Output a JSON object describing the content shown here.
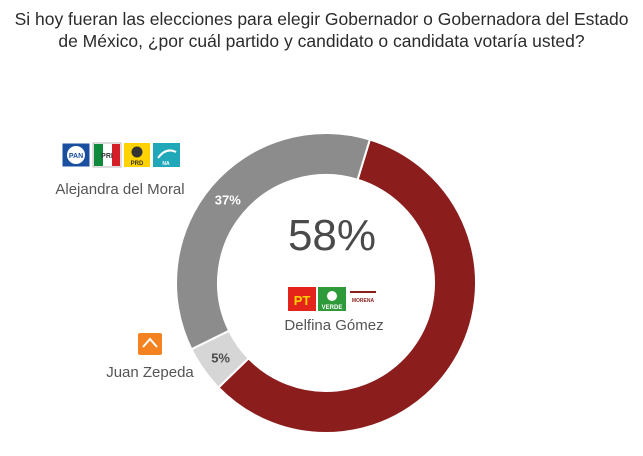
{
  "title": "Si hoy fueran las elecciones para elegir Gobernador o Gobernadora del Estado de México, ¿por cuál partido y candidato o candidata votaría usted?",
  "center_value": "58%",
  "chart_data": {
    "type": "pie",
    "donut": true,
    "title": "Si hoy fueran las elecciones para elegir Gobernador o Gobernadora del Estado de México, ¿por cuál partido y candidato o candidata votaría usted?",
    "categories": [
      "Delfina Gómez",
      "Juan Zepeda",
      "Alejandra del Moral"
    ],
    "values": [
      58,
      5,
      37
    ],
    "labels": [
      "58%",
      "5%",
      "37%"
    ],
    "colors": [
      "#8b1d1d",
      "#d6d6d6",
      "#8c8c8c"
    ],
    "parties": [
      [
        "PT",
        "VERDE",
        "MORENA"
      ],
      [
        "MC"
      ],
      [
        "PAN",
        "PRI",
        "PRD",
        "NUEVA ALIANZA"
      ]
    ],
    "start_angle_deg": 17,
    "direction": "clockwise"
  },
  "candidates": {
    "delfina": {
      "name": "Delfina Gómez",
      "logos": [
        "PT",
        "VERDE",
        "MORENA"
      ]
    },
    "juan": {
      "name": "Juan Zepeda",
      "logos": [
        "MC"
      ]
    },
    "alejandra": {
      "name": "Alejandra del Moral",
      "logos": [
        "PAN",
        "PRI",
        "PRD",
        "NUEVA ALIANZA"
      ]
    }
  },
  "logo_text": {
    "pan": "PAN",
    "pri": "PRI",
    "prd": "PRD",
    "na": "NA",
    "pt": "PT",
    "verde": "VERDE",
    "morena": "MORENA"
  }
}
